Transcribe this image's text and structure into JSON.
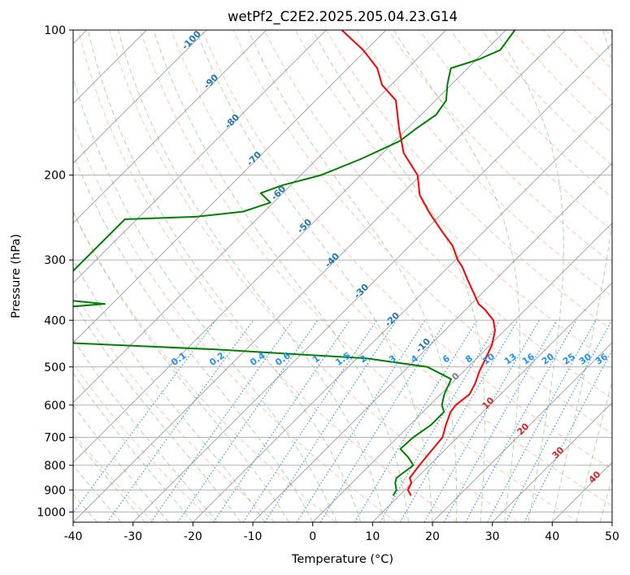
{
  "chart_data": {
    "type": "line",
    "title": "wetPf2_C2E2.2025.205.04.23.G14",
    "xlabel": "Temperature (°C)",
    "ylabel": "Pressure (hPa)",
    "xlim": [
      -40,
      50
    ],
    "ylim": [
      1050,
      100
    ],
    "y_scale": "log",
    "grid": true,
    "x_ticks": [
      -40,
      -30,
      -20,
      -10,
      0,
      10,
      20,
      30,
      40,
      50
    ],
    "y_ticks": [
      100,
      200,
      300,
      400,
      500,
      600,
      700,
      800,
      900,
      1000
    ],
    "series": [
      {
        "color": "#ff0000",
        "points": [
          [
            12.0,
            925
          ],
          [
            10.5,
            900
          ],
          [
            9.9,
            870
          ],
          [
            8.8,
            850
          ],
          [
            8.3,
            800
          ],
          [
            7.9,
            750
          ],
          [
            7.5,
            700
          ],
          [
            6.0,
            660
          ],
          [
            4.6,
            620
          ],
          [
            4.3,
            600
          ],
          [
            4.8,
            570
          ],
          [
            3.9,
            540
          ],
          [
            2.6,
            510
          ],
          [
            1.5,
            480
          ],
          [
            0.3,
            450
          ],
          [
            -1.6,
            420
          ],
          [
            -3.6,
            400
          ],
          [
            -6.8,
            380
          ],
          [
            -8.8,
            370
          ],
          [
            -11.6,
            350
          ],
          [
            -14.6,
            330
          ],
          [
            -17.7,
            310
          ],
          [
            -19.6,
            300
          ],
          [
            -22.9,
            280
          ],
          [
            -27.4,
            260
          ],
          [
            -32.1,
            240
          ],
          [
            -36.8,
            220
          ],
          [
            -40.5,
            200
          ],
          [
            -46.5,
            180
          ],
          [
            -51.4,
            160
          ],
          [
            -56.6,
            140
          ],
          [
            -61.5,
            130
          ],
          [
            -65.1,
            120
          ],
          [
            -70.5,
            110
          ],
          [
            -77.4,
            100
          ]
        ]
      },
      {
        "color": "#008000",
        "points": [
          [
            9.0,
            925
          ],
          [
            8.6,
            900
          ],
          [
            7.2,
            870
          ],
          [
            6.6,
            850
          ],
          [
            7.3,
            800
          ],
          [
            5.1,
            770
          ],
          [
            2.4,
            740
          ],
          [
            2.6,
            700
          ],
          [
            3.5,
            660
          ],
          [
            3.5,
            620
          ],
          [
            2.0,
            600
          ],
          [
            0.6,
            570
          ],
          [
            -0.8,
            530
          ],
          [
            -6.8,
            500
          ],
          [
            -18.4,
            480
          ],
          [
            -45.0,
            460
          ],
          [
            -72.0,
            445
          ],
          [
            -80.0,
            435
          ],
          [
            -82.0,
            380
          ],
          [
            -71.2,
            370
          ],
          [
            -82.0,
            360
          ],
          [
            -82.0,
            255
          ],
          [
            -82.0,
            247
          ],
          [
            -70.6,
            244
          ],
          [
            -63.5,
            238
          ],
          [
            -60.5,
            228
          ],
          [
            -63.7,
            218
          ],
          [
            -61.4,
            210
          ],
          [
            -56.6,
            200
          ],
          [
            -52.6,
            185
          ],
          [
            -49.2,
            170
          ],
          [
            -48.5,
            160
          ],
          [
            -47.5,
            150
          ],
          [
            -48.2,
            140
          ],
          [
            -50.6,
            130
          ],
          [
            -51.7,
            125
          ],
          [
            -52.8,
            120
          ],
          [
            -49.6,
            115
          ],
          [
            -47.6,
            110
          ],
          [
            -48.5,
            100
          ]
        ]
      }
    ],
    "isotherm_labels": [
      "-100",
      "-90",
      "-80",
      "-70",
      "-60",
      "-50",
      "-40",
      "-30",
      "-20",
      "-10"
    ],
    "mixing_ratio_labels": [
      "0.1",
      "0.2",
      "0.4",
      "0.6",
      "1",
      "1.5",
      "2",
      "3",
      "4",
      "6",
      "8",
      "10",
      "13",
      "16",
      "20",
      "25",
      "30",
      "36"
    ],
    "moist_adiabat_labels": [
      "0",
      "10",
      "20",
      "30",
      "40"
    ],
    "colors": {
      "isotherm": "#808080",
      "isotherm_label": "#1f77b4",
      "dry_adiabat": "#ff7f50",
      "moist_adiabat": "#2ca02c",
      "mixing_ratio": "#1e90ff",
      "mixing_ratio_label": "#1e90ff",
      "moist_label_zero": "#808080",
      "moist_label": "#d62728"
    }
  }
}
